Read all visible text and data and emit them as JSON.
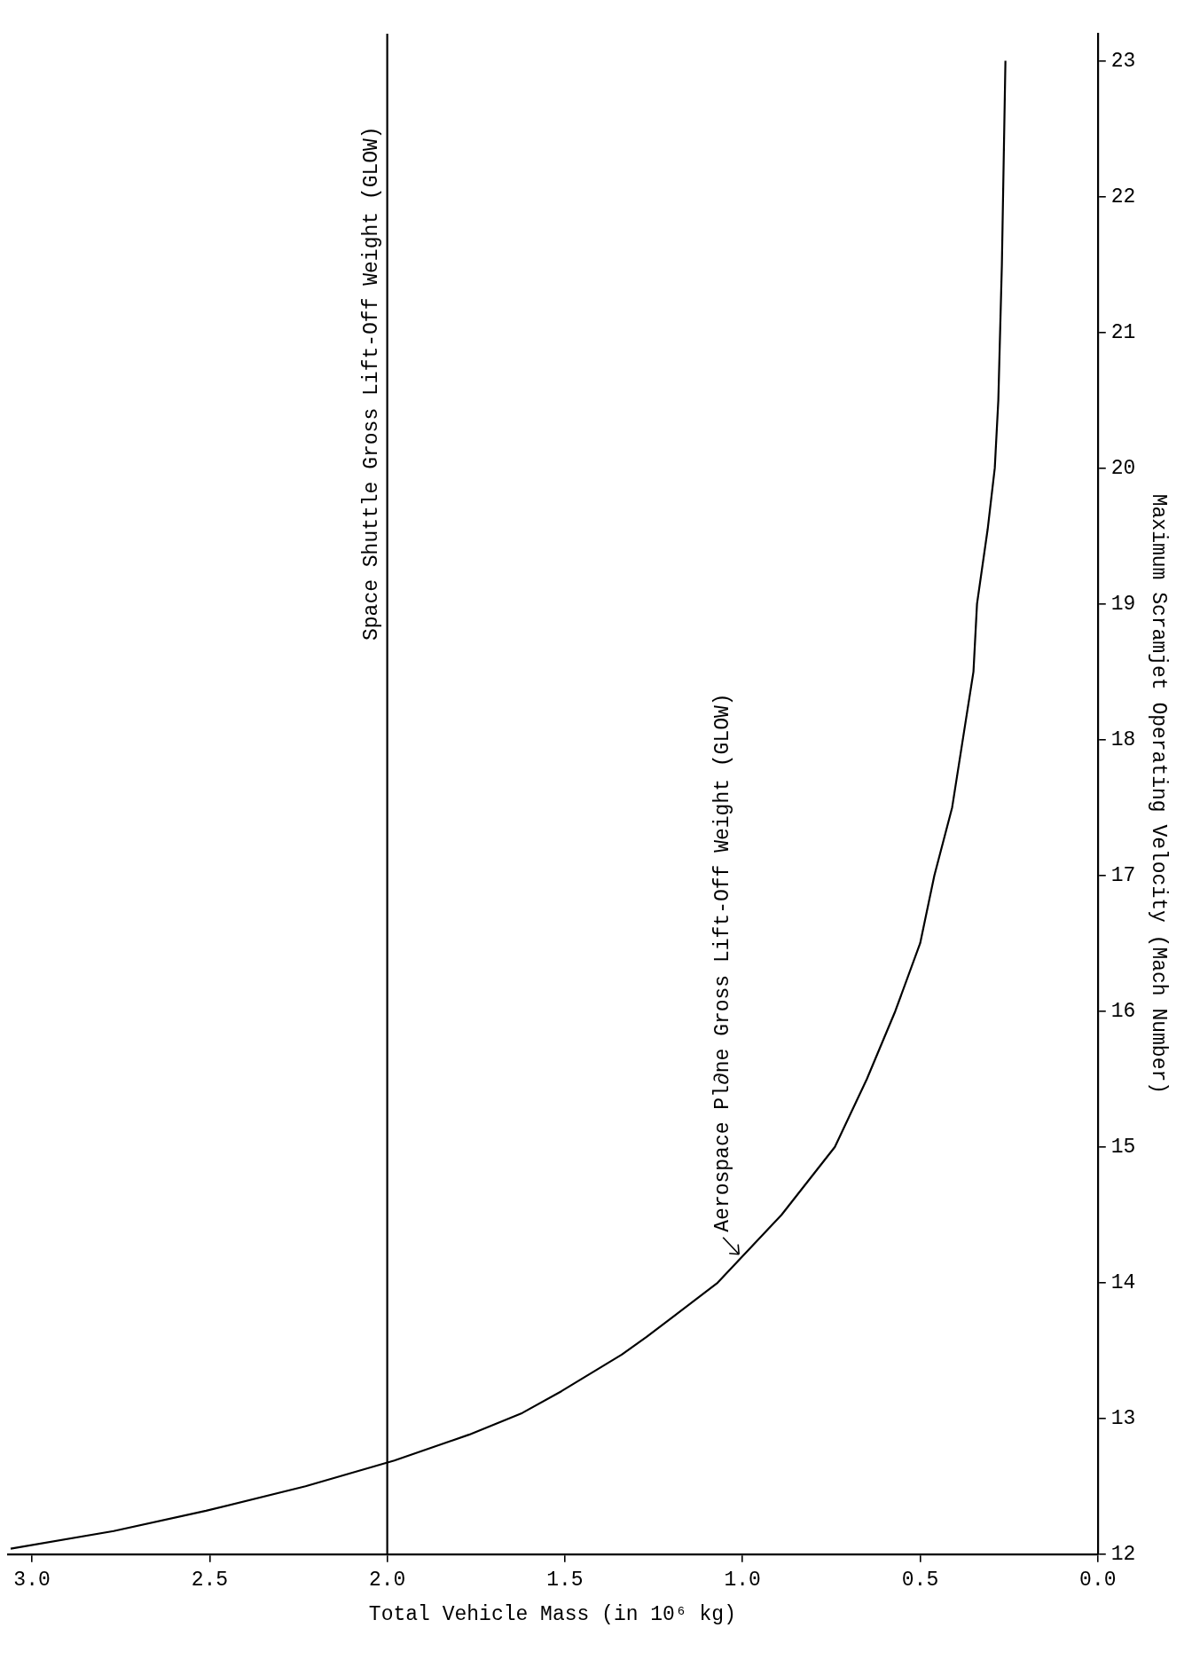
{
  "chart_data": {
    "type": "line",
    "xlabel": "Total Vehicle Mass (in 10⁶ kg)",
    "ylabel": "Maximum Scramjet Operating Velocity (Mach Number)",
    "xlim": [
      3.07,
      0
    ],
    "xticks": [
      {
        "value": 3,
        "label": "3.0"
      },
      2.5,
      {
        "value": 2,
        "label": "2.0"
      },
      1.5,
      {
        "value": 1,
        "label": "1.0"
      },
      0.5,
      {
        "value": 0,
        "label": "0.0"
      }
    ],
    "ylim": [
      12,
      23.2
    ],
    "yticks": [
      12,
      13,
      14,
      15,
      16,
      17,
      18,
      19,
      20,
      21,
      22,
      23
    ],
    "grid": false,
    "legend": false,
    "marker": "none",
    "line_style": "solid",
    "ref_lines": [
      {
        "axis": "x",
        "value": 2,
        "label": "Space Shuttle Gross Lift-Off Weight (GLOW)",
        "color": "#000000"
      }
    ],
    "annotations": [
      {
        "text": "Aerospace Pl∂ne Gross Lift-Off Weight (GLOW)",
        "x": 1,
        "y": 14.19
      }
    ],
    "series": [
      {
        "color": "#000000",
        "x": [
          0.26,
          0.27,
          0.28,
          0.29,
          0.31,
          0.34,
          0.35,
          0.38,
          0.41,
          0.46,
          0.5,
          0.57,
          0.65,
          0.74,
          0.89,
          1.07,
          1.27,
          1.34,
          1.51,
          1.62,
          1.77,
          1.98,
          2.23,
          2.51,
          2.77,
          3.06
        ],
        "values": [
          23.0,
          21.5,
          20.5,
          20.0,
          19.55,
          19.0,
          18.5,
          18.0,
          17.5,
          17.0,
          16.5,
          16.0,
          15.5,
          15.0,
          14.5,
          14.0,
          13.6,
          13.47,
          13.2,
          13.04,
          12.88,
          12.69,
          12.5,
          12.32,
          12.17,
          12.04
        ]
      }
    ]
  }
}
